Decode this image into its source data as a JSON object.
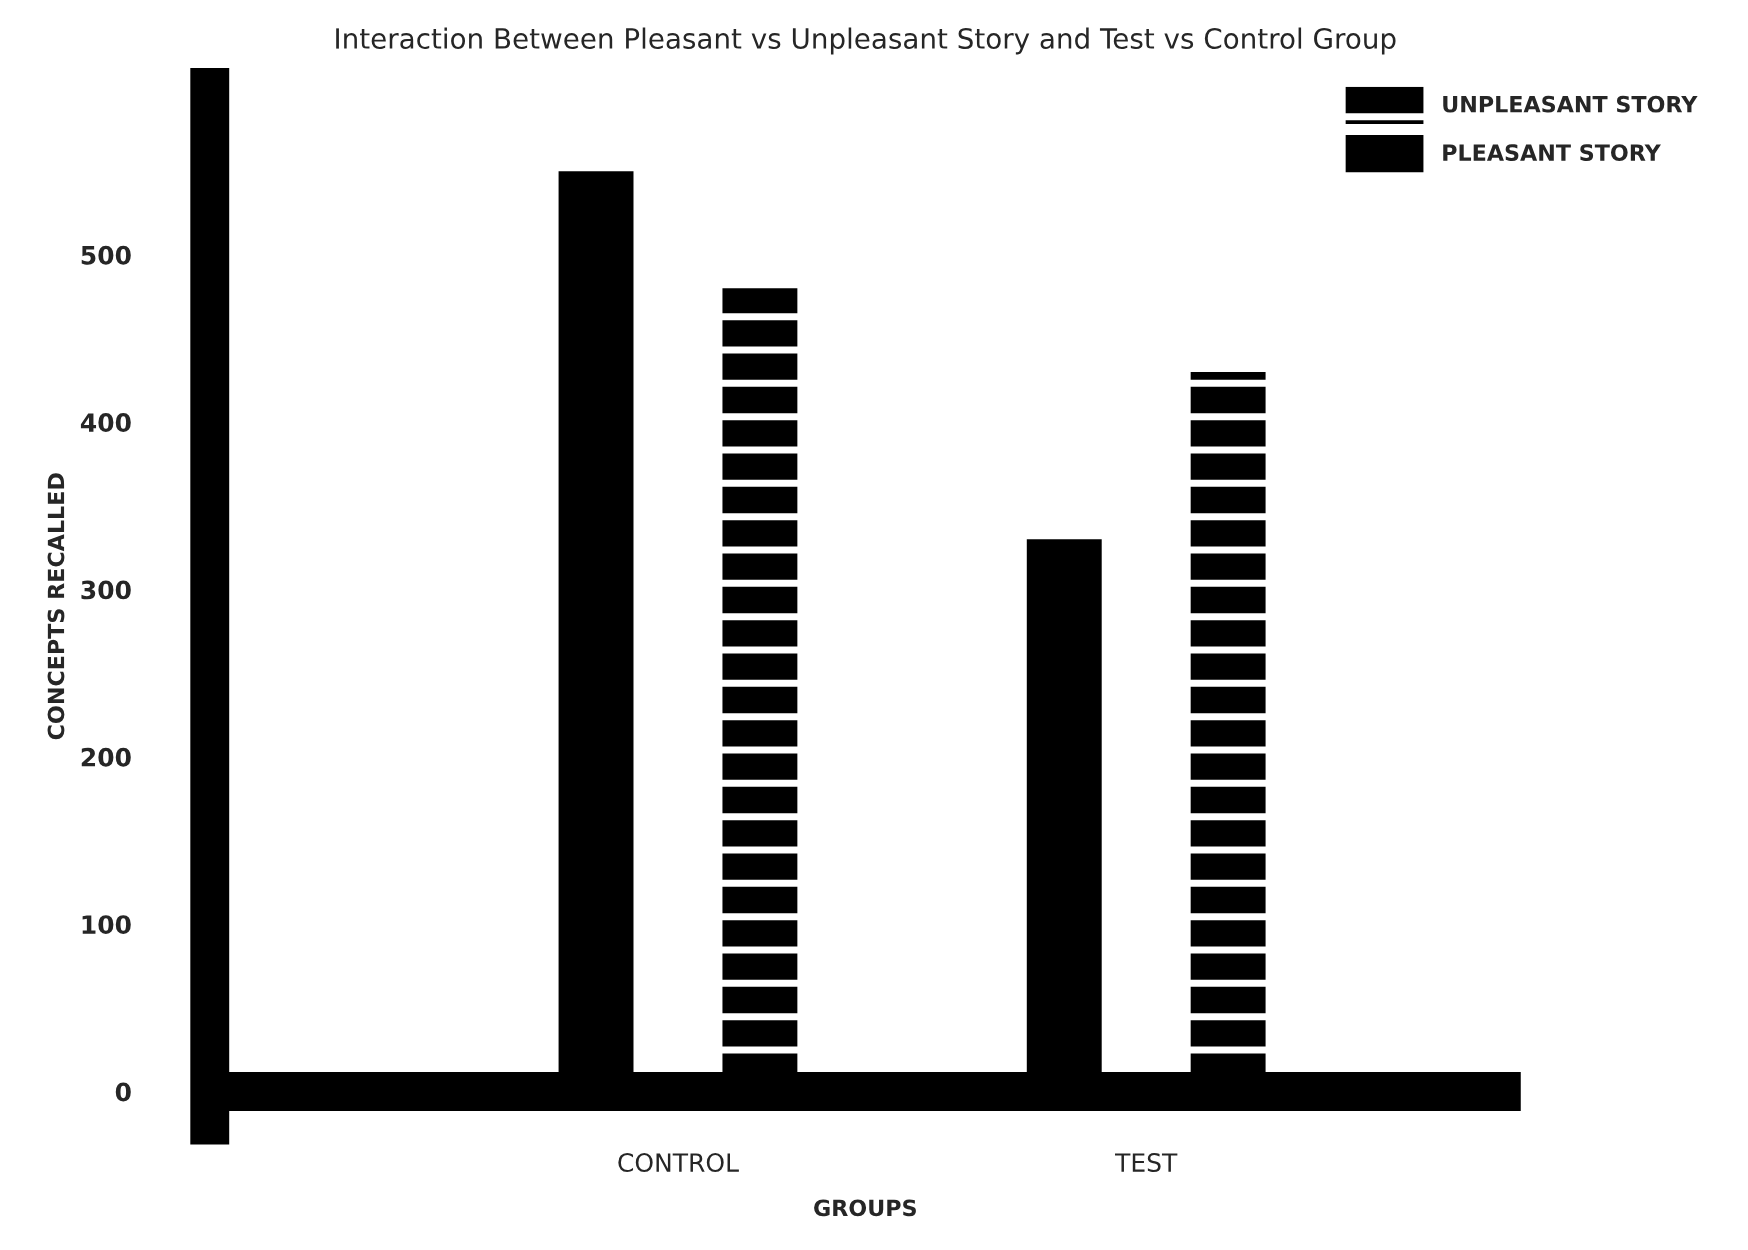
{
  "chart_data": {
    "type": "bar",
    "title": "Interaction Between Pleasant vs Unpleasant Story and Test vs Control Group",
    "xlabel": "GROUPS",
    "ylabel": "CONCEPTS RECALLED",
    "categories": [
      "CONTROL",
      "TEST"
    ],
    "series": [
      {
        "name": "PLEASANT STORY",
        "color": "#000000",
        "values": [
          550,
          330
        ]
      },
      {
        "name": "UNPLEASANT STORY",
        "color": "#000000",
        "values": [
          480,
          430
        ]
      }
    ],
    "ylim": [
      -20,
      600
    ],
    "yticks": [
      0,
      100,
      200,
      300,
      400,
      500
    ],
    "grid": false,
    "legend": "top right"
  }
}
